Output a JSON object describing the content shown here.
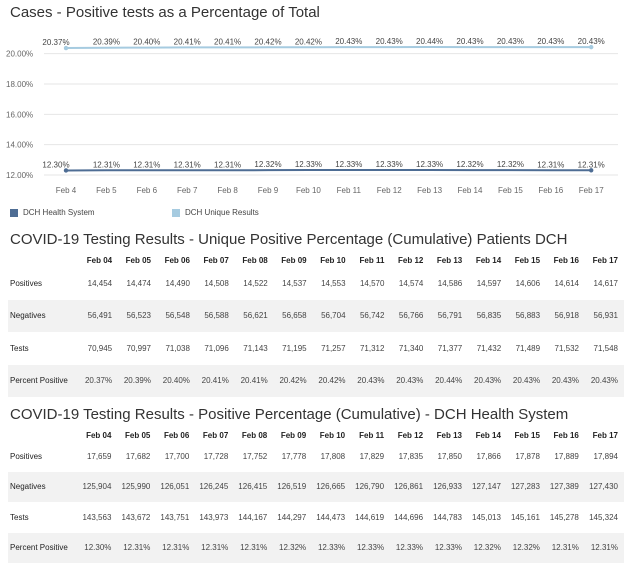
{
  "chart_title": "Cases - Positive tests as a Percentage of Total",
  "chart_data": {
    "type": "line",
    "title": "Cases - Positive tests as a Percentage of Total",
    "xlabel": "",
    "ylabel": "",
    "categories": [
      "Feb 4",
      "Feb 5",
      "Feb 6",
      "Feb 7",
      "Feb 8",
      "Feb 9",
      "Feb 10",
      "Feb 11",
      "Feb 12",
      "Feb 13",
      "Feb 14",
      "Feb 15",
      "Feb 16",
      "Feb 17"
    ],
    "y_ticks": [
      "20.00%",
      "18.00%",
      "16.00%",
      "14.00%",
      "12.00%"
    ],
    "y_tick_values": [
      20,
      18,
      16,
      14,
      12
    ],
    "ylim": [
      12,
      20.9
    ],
    "grid": true,
    "legend_position": "bottom-left",
    "series": [
      {
        "name": "DCH Health System",
        "color": "#4e6d94",
        "values": [
          12.3,
          12.31,
          12.31,
          12.31,
          12.31,
          12.32,
          12.33,
          12.33,
          12.33,
          12.33,
          12.32,
          12.32,
          12.31,
          12.31
        ],
        "labels": [
          "12.30%",
          "12.31%",
          "12.31%",
          "12.31%",
          "12.31%",
          "12.32%",
          "12.33%",
          "12.33%",
          "12.33%",
          "12.33%",
          "12.32%",
          "12.32%",
          "12.31%",
          "12.31%"
        ]
      },
      {
        "name": "DCH Unique Results",
        "color": "#a6cbe0",
        "values": [
          20.37,
          20.39,
          20.4,
          20.41,
          20.41,
          20.42,
          20.42,
          20.43,
          20.43,
          20.44,
          20.43,
          20.43,
          20.43,
          20.43
        ],
        "labels": [
          "20.37%",
          "20.39%",
          "20.40%",
          "20.41%",
          "20.41%",
          "20.42%",
          "20.42%",
          "20.43%",
          "20.43%",
          "20.44%",
          "20.43%",
          "20.43%",
          "20.43%",
          "20.43%"
        ]
      }
    ]
  },
  "table1": {
    "title": "COVID-19 Testing Results - Unique Positive Percentage (Cumulative) Patients DCH",
    "headers": [
      "Feb 04",
      "Feb 05",
      "Feb 06",
      "Feb 07",
      "Feb 08",
      "Feb 09",
      "Feb 10",
      "Feb 11",
      "Feb 12",
      "Feb 13",
      "Feb 14",
      "Feb 15",
      "Feb 16",
      "Feb 17"
    ],
    "rows": [
      {
        "label": "Positives",
        "cells": [
          "14,454",
          "14,474",
          "14,490",
          "14,508",
          "14,522",
          "14,537",
          "14,553",
          "14,570",
          "14,574",
          "14,586",
          "14,597",
          "14,606",
          "14,614",
          "14,617"
        ]
      },
      {
        "label": "Negatives",
        "cells": [
          "56,491",
          "56,523",
          "56,548",
          "56,588",
          "56,621",
          "56,658",
          "56,704",
          "56,742",
          "56,766",
          "56,791",
          "56,835",
          "56,883",
          "56,918",
          "56,931"
        ]
      },
      {
        "label": "Tests",
        "cells": [
          "70,945",
          "70,997",
          "71,038",
          "71,096",
          "71,143",
          "71,195",
          "71,257",
          "71,312",
          "71,340",
          "71,377",
          "71,432",
          "71,489",
          "71,532",
          "71,548"
        ]
      },
      {
        "label": "Percent Positive",
        "cells": [
          "20.37%",
          "20.39%",
          "20.40%",
          "20.41%",
          "20.41%",
          "20.42%",
          "20.42%",
          "20.43%",
          "20.43%",
          "20.44%",
          "20.43%",
          "20.43%",
          "20.43%",
          "20.43%"
        ]
      }
    ]
  },
  "table2": {
    "title": "COVID-19 Testing Results - Positive Percentage (Cumulative) - DCH Health System",
    "headers": [
      "Feb 04",
      "Feb 05",
      "Feb 06",
      "Feb 07",
      "Feb 08",
      "Feb 09",
      "Feb 10",
      "Feb 11",
      "Feb 12",
      "Feb 13",
      "Feb 14",
      "Feb 15",
      "Feb 16",
      "Feb 17"
    ],
    "rows": [
      {
        "label": "Positives",
        "cells": [
          "17,659",
          "17,682",
          "17,700",
          "17,728",
          "17,752",
          "17,778",
          "17,808",
          "17,829",
          "17,835",
          "17,850",
          "17,866",
          "17,878",
          "17,889",
          "17,894"
        ]
      },
      {
        "label": "Negatives",
        "cells": [
          "125,904",
          "125,990",
          "126,051",
          "126,245",
          "126,415",
          "126,519",
          "126,665",
          "126,790",
          "126,861",
          "126,933",
          "127,147",
          "127,283",
          "127,389",
          "127,430"
        ]
      },
      {
        "label": "Tests",
        "cells": [
          "143,563",
          "143,672",
          "143,751",
          "143,973",
          "144,167",
          "144,297",
          "144,473",
          "144,619",
          "144,696",
          "144,783",
          "145,013",
          "145,161",
          "145,278",
          "145,324"
        ]
      },
      {
        "label": "Percent Positive",
        "cells": [
          "12.30%",
          "12.31%",
          "12.31%",
          "12.31%",
          "12.31%",
          "12.32%",
          "12.33%",
          "12.33%",
          "12.33%",
          "12.33%",
          "12.32%",
          "12.32%",
          "12.31%",
          "12.31%"
        ]
      }
    ]
  }
}
